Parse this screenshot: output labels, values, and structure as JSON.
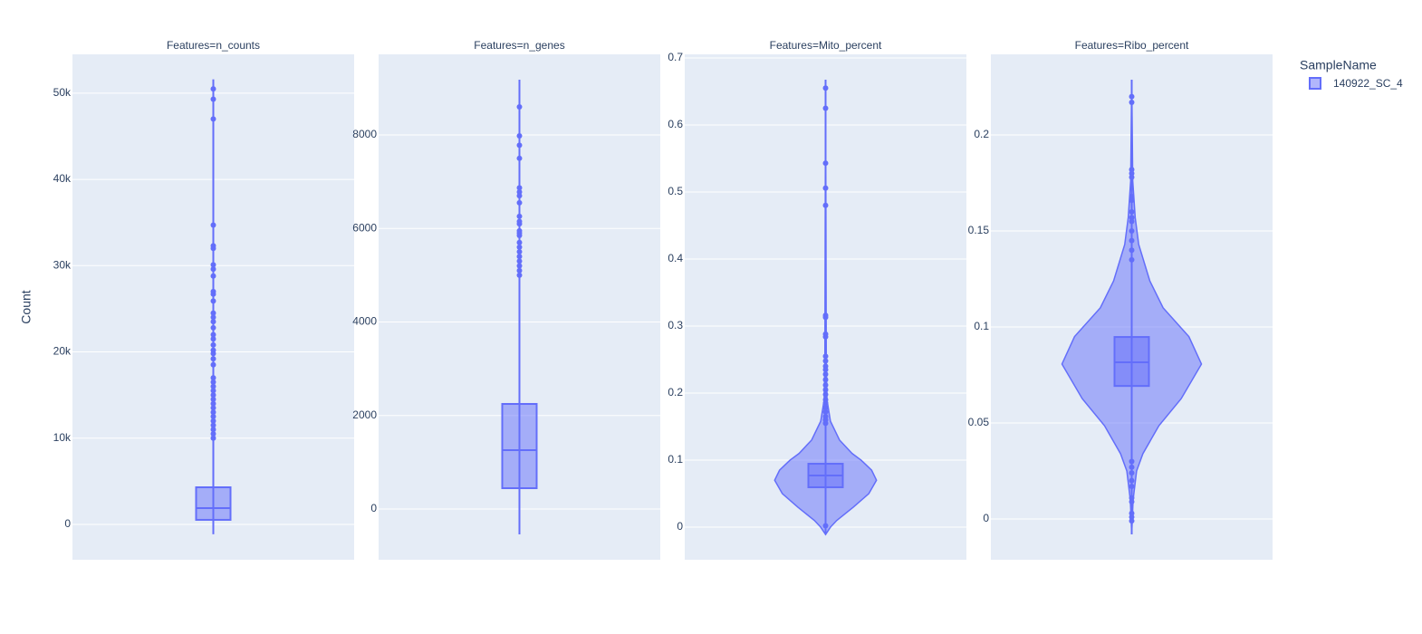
{
  "chart_data": {
    "type": "violin",
    "y_label": "Count",
    "legend_title": "SampleName",
    "series_name": "140922_SC_4",
    "color": "#636efa",
    "grid": true,
    "panels": [
      {
        "title": "Features=n_counts",
        "ylim": [
          -4100,
          54500
        ],
        "yticks": [
          0,
          {
            "value": 10000,
            "label": "10k"
          },
          {
            "value": 20000,
            "label": "20k"
          },
          {
            "value": 30000,
            "label": "30k"
          },
          {
            "value": 40000,
            "label": "40k"
          },
          {
            "value": 50000,
            "label": "50k"
          }
        ],
        "box": {
          "q1": 525,
          "median": 1890,
          "q3": 4300
        },
        "span": [
          -1150,
          51600
        ],
        "outliers": [
          50500,
          49300,
          47000,
          34700,
          32300,
          32000,
          30100,
          29600,
          28800,
          27000,
          26700,
          25900,
          24500,
          24000,
          23500,
          22800,
          22000,
          21500,
          20800,
          20200,
          19800,
          19200,
          18500,
          17000,
          16500,
          16000,
          15500,
          15000,
          14500,
          14000,
          13500,
          13000,
          12500,
          12000,
          11500,
          11000,
          10500,
          10000
        ]
      },
      {
        "title": "Features=n_genes",
        "ylim": [
          -1085,
          9724
        ],
        "yticks": [
          0,
          2000,
          4000,
          6000,
          8000
        ],
        "box": {
          "q1": 445,
          "median": 1259,
          "q3": 2247
        },
        "span": [
          -542,
          9182
        ],
        "outliers": [
          8600,
          7980,
          7780,
          7500,
          6870,
          6780,
          6700,
          6550,
          6260,
          6150,
          6100,
          5950,
          5900,
          5850,
          5700,
          5600,
          5500,
          5400,
          5300,
          5200,
          5100,
          5000
        ]
      },
      {
        "title": "Features=Mito_percent",
        "ylim": [
          -0.0486,
          0.7054
        ],
        "yticks": [
          0,
          0.1,
          0.2,
          0.3,
          0.4,
          0.5,
          0.6,
          0.7
        ],
        "box": {
          "q1": 0.0595,
          "median": 0.077,
          "q3": 0.0946
        },
        "span": [
          -0.011,
          0.6676
        ],
        "outliers": [
          0.655,
          0.625,
          0.543,
          0.506,
          0.48,
          0.316,
          0.313,
          0.288,
          0.284,
          0.255,
          0.248,
          0.24,
          0.235,
          0.228,
          0.22,
          0.212,
          0.205,
          0.198,
          0.19,
          0.185,
          0.178,
          0.172,
          0.165,
          0.16,
          0.155,
          0.002
        ],
        "kde": {
          "y": [
            -0.011,
            0,
            0.01,
            0.03,
            0.05,
            0.07,
            0.085,
            0.1,
            0.11,
            0.13,
            0.158,
            0.19,
            0.25,
            0.6676
          ],
          "density": [
            0,
            0.07,
            0.16,
            0.4,
            0.62,
            0.73,
            0.66,
            0.51,
            0.38,
            0.2,
            0.07,
            0.02,
            0.01,
            0
          ]
        }
      },
      {
        "title": "Features=Ribo_percent",
        "ylim": [
          -0.0212,
          0.242
        ],
        "yticks": [
          0,
          0.05,
          0.1,
          0.15,
          0.2
        ],
        "box": {
          "q1": 0.0693,
          "median": 0.0816,
          "q3": 0.0948
        },
        "span": [
          -0.008,
          0.2288
        ],
        "outliers": [
          0.22,
          0.217,
          0.182,
          0.18,
          0.178,
          0.168,
          0.166,
          0.16,
          0.157,
          0.155,
          0.15,
          0.145,
          0.14,
          0.135,
          0.03,
          0.027,
          0.024,
          0.02,
          0.017,
          0.011,
          0.009,
          0.003,
          0.001,
          -0.001
        ],
        "kde": {
          "y": [
            -0.008,
            0.01,
            0.025,
            0.034,
            0.0486,
            0.0627,
            0.0807,
            0.095,
            0.11,
            0.124,
            0.143,
            0.157,
            0.176,
            0.2288
          ],
          "density": [
            0,
            0.02,
            0.07,
            0.16,
            0.39,
            0.71,
            1,
            0.82,
            0.45,
            0.26,
            0.1,
            0.05,
            0.015,
            0
          ]
        }
      }
    ]
  }
}
